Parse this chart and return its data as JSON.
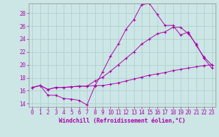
{
  "xlabel": "Windchill (Refroidissement éolien,°C)",
  "bg_color": "#cce5e5",
  "line_color": "#aa00aa",
  "grid_color": "#aacccc",
  "spine_color": "#888888",
  "ylim": [
    13.5,
    29.5
  ],
  "xlim": [
    -0.5,
    23.5
  ],
  "yticks": [
    14,
    16,
    18,
    20,
    22,
    24,
    26,
    28
  ],
  "xticks": [
    0,
    1,
    2,
    3,
    4,
    5,
    6,
    7,
    8,
    9,
    10,
    11,
    12,
    13,
    14,
    15,
    16,
    17,
    18,
    19,
    20,
    21,
    22,
    23
  ],
  "line1_x": [
    0,
    1,
    2,
    3,
    4,
    5,
    6,
    7,
    8,
    9,
    10,
    11,
    12,
    13,
    14,
    15,
    16,
    17,
    18,
    19,
    20,
    21,
    22,
    23
  ],
  "line1_y": [
    16.5,
    16.8,
    15.3,
    15.3,
    14.8,
    14.7,
    14.5,
    13.8,
    16.7,
    18.9,
    21.3,
    23.2,
    25.5,
    27.0,
    29.3,
    29.5,
    27.8,
    26.1,
    26.1,
    24.6,
    25.1,
    23.0,
    21.2,
    20.0
  ],
  "line2_x": [
    0,
    1,
    2,
    3,
    4,
    5,
    6,
    7,
    8,
    9,
    10,
    11,
    12,
    13,
    14,
    15,
    16,
    17,
    18,
    19,
    20,
    21,
    22,
    23
  ],
  "line2_y": [
    16.5,
    16.8,
    16.2,
    16.5,
    16.5,
    16.6,
    16.7,
    16.7,
    16.8,
    16.8,
    17.0,
    17.2,
    17.5,
    17.8,
    18.1,
    18.4,
    18.6,
    18.8,
    19.1,
    19.3,
    19.5,
    19.7,
    19.9,
    20.0
  ],
  "line3_x": [
    0,
    1,
    2,
    3,
    4,
    5,
    6,
    7,
    8,
    9,
    10,
    11,
    12,
    13,
    14,
    15,
    16,
    17,
    18,
    19,
    20,
    21,
    22,
    23
  ],
  "line3_y": [
    16.5,
    16.8,
    16.2,
    16.5,
    16.5,
    16.6,
    16.7,
    16.7,
    17.5,
    18.1,
    19.0,
    20.0,
    21.0,
    22.0,
    23.2,
    24.0,
    24.8,
    25.1,
    25.8,
    25.8,
    24.8,
    23.2,
    21.0,
    19.5
  ],
  "tick_fontsize": 5.5,
  "xlabel_fontsize": 6.0
}
